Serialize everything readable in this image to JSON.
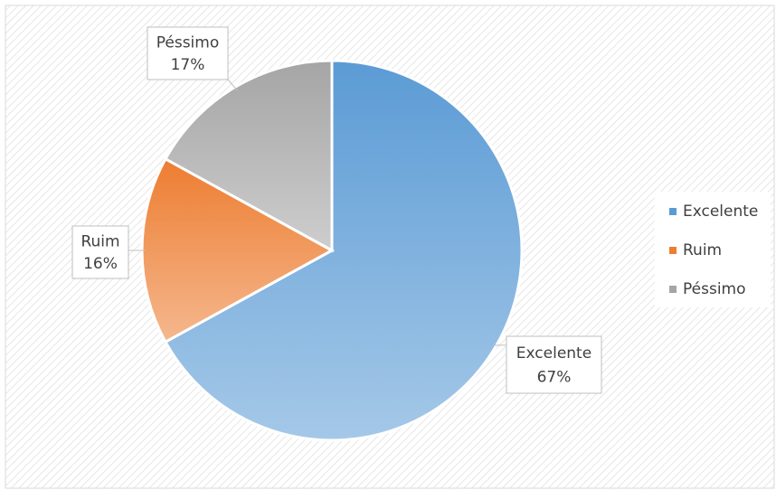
{
  "chart_data": {
    "type": "pie",
    "categories": [
      "Excelente",
      "Ruim",
      "Péssimo"
    ],
    "values": [
      67,
      16,
      17
    ],
    "value_labels": [
      "67%",
      "16%",
      "17%"
    ],
    "colors": [
      "#5b9bd5",
      "#ed7d31",
      "#a5a5a5"
    ],
    "legend": "right"
  }
}
